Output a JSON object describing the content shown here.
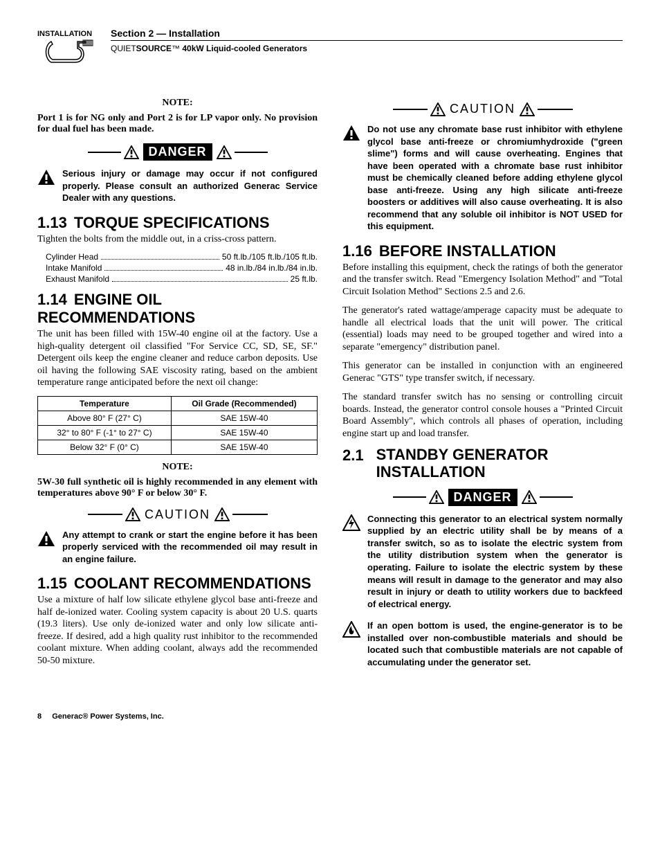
{
  "header": {
    "section_label": "Section 2 — Installation",
    "subtitle_light": "QUIET",
    "subtitle_bold1": "SOURCE",
    "subtitle_tm": "™",
    "subtitle_bold2": " 40kW Liquid-cooled Generators",
    "installation_word": "INSTALLATION"
  },
  "left": {
    "note1_label": "NOTE:",
    "note1_body": "Port 1 is for NG only and Port 2 is for LP vapor only. No provision for dual fuel has been made.",
    "danger1_text": "Serious injury or damage may occur if not configured properly. Please consult an authorized Generac Service Dealer with any questions.",
    "h113_num": "1.13",
    "h113_txt": "TORQUE SPECIFICATIONS",
    "h113_body": "Tighten the bolts from the middle out, in a criss-cross pattern.",
    "specs": [
      {
        "label": "Cylinder Head",
        "value": "50 ft.lb./105 ft.lb./105 ft.lb."
      },
      {
        "label": "Intake Manifold",
        "value": "48 in.lb./84 in.lb./84 in.lb."
      },
      {
        "label": "Exhaust Manifold",
        "value": "25 ft.lb."
      }
    ],
    "h114_num": "1.14",
    "h114_txt": "ENGINE OIL RECOMMENDATIONS",
    "h114_body": "The unit has been filled with 15W-40 engine oil at the factory. Use a high-quality detergent oil classified \"For Service CC, SD, SE, SF.\" Detergent oils keep the engine cleaner and reduce carbon deposits. Use oil having the following SAE viscosity rating, based on the ambient temperature range anticipated before the next oil change:",
    "oil_table": {
      "headers": [
        "Temperature",
        "Oil Grade (Recommended)"
      ],
      "rows": [
        [
          "Above 80° F (27° C)",
          "SAE 15W-40"
        ],
        [
          "32° to 80° F (-1° to 27° C)",
          "SAE 15W-40"
        ],
        [
          "Below 32° F (0° C)",
          "SAE 15W-40"
        ]
      ]
    },
    "note2_label": "NOTE:",
    "note2_body": "5W-30 full synthetic oil is highly recommended in any element with temperatures above 90° F or below 30° F.",
    "caution1_text": "Any attempt to crank or start the engine before it has been properly serviced with the recommended oil may result in an engine failure.",
    "h115_num": "1.15",
    "h115_txt": "COOLANT RECOMMENDATIONS",
    "h115_body": "Use a mixture of half low silicate ethylene glycol base anti-freeze and half de-ionized water. Cooling system capacity is about 20 U.S. quarts (19.3 liters). Use only de-ionized water and only low silicate anti-freeze. If desired, add a high quality rust inhibitor to the recommended coolant mixture. When adding coolant, always add the recommended 50-50 mixture."
  },
  "right": {
    "caution2_text": "Do not use any chromate base rust inhibitor with ethylene glycol base anti-freeze or chromiumhydroxide (\"green slime\") forms and will cause overheating. Engines that have been operated with a chromate base rust inhibitor must be chemically cleaned before adding ethylene glycol base anti-freeze. Using any high silicate anti-freeze boosters or additives will also cause overheating. It is also recommend that any soluble oil inhibitor is NOT USED for this equipment.",
    "h116_num": "1.16",
    "h116_txt": "BEFORE INSTALLATION",
    "h116_p1": "Before installing this equipment, check the ratings of both the generator and the transfer switch. Read \"Emergency Isolation Method\" and \"Total Circuit Isolation Method\" Sections 2.5 and 2.6.",
    "h116_p2": "The generator's rated wattage/amperage capacity must be adequate to handle all electrical loads that the unit will power. The critical (essential) loads may need to be grouped together and wired into a separate \"emergency\" distribution panel.",
    "h116_p3": "This generator can be installed in conjunction with an engineered Generac \"GTS\" type transfer switch, if necessary.",
    "h116_p4": "The standard transfer switch has no sensing or controlling circuit boards. Instead, the generator control console houses a \"Printed Circuit Board Assembly\", which controls all phases of operation, including engine start up and load transfer.",
    "h21_num": "2.1",
    "h21_txt": "STANDBY GENERATOR INSTALLATION",
    "danger2a_text": "Connecting this generator to an electrical system normally supplied by an electric utility shall be by means of a transfer switch, so as to isolate the electric system from the utility distribution system when the generator is operating. Failure to isolate the electric system by these means will result in damage to the generator and may also result in injury or death to utility workers due to backfeed of electrical energy.",
    "danger2b_text": "If an open bottom is used, the engine-generator is to be installed over non-combustible materials and should be located such that combustible materials are not capable of accumulating under the generator set."
  },
  "footer": {
    "page": "8",
    "company": "Generac® Power Systems, Inc."
  },
  "words": {
    "danger": "DANGER",
    "caution": "CAUTION"
  }
}
